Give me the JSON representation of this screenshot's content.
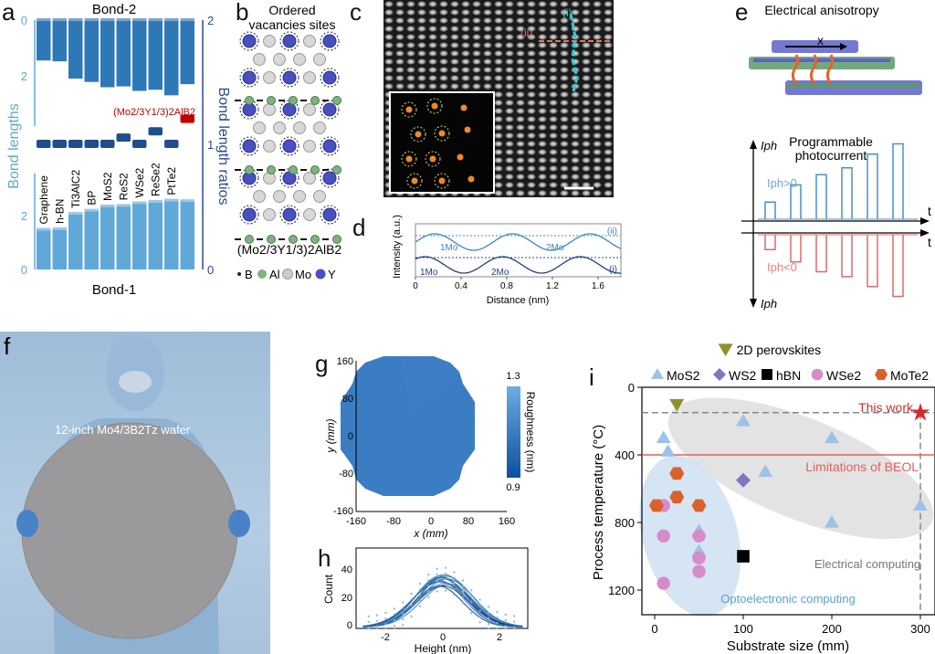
{
  "panel_labels": {
    "a": "a",
    "b": "b",
    "c": "c",
    "d": "d",
    "e": "e",
    "f": "f",
    "g": "g",
    "h": "h",
    "i": "i"
  },
  "panel_a": {
    "top_title": "Bond-2",
    "bottom_title": "Bond-1",
    "left_axis_label": "Bond lengths",
    "right_axis_label": "Bond length ratios",
    "left_top_ticks": [
      "0",
      "2"
    ],
    "left_bottom_ticks": [
      "2",
      "0"
    ],
    "right_ticks": [
      "2",
      "1",
      "0"
    ],
    "highlight_label": "(Mo2/3Y1/3)2AlB2",
    "materials": [
      "Graphene",
      "h-BN",
      "Ti3AlC2",
      "BP",
      "MoS2",
      "ReS2",
      "WSe2",
      "ReSe2",
      "PtTe2",
      "(Mo2/3Y1/3)2AlB2"
    ],
    "bond2": [
      1.45,
      1.48,
      2.1,
      2.22,
      2.41,
      2.38,
      2.54,
      2.5,
      2.7,
      2.3
    ],
    "bond1": [
      1.5,
      1.52,
      2.1,
      2.22,
      2.38,
      2.4,
      2.5,
      2.55,
      2.6,
      2.58
    ],
    "ratio": [
      1.0,
      1.0,
      1.0,
      1.0,
      1.0,
      1.05,
      1.0,
      1.1,
      1.0,
      1.2
    ],
    "colors": {
      "bond2": "#2f78b8",
      "bond1": "#5fa8d8",
      "ratio": "#1f4e8c",
      "highlight": "#c00000",
      "left_axis": "#5fa8d8",
      "right_axis": "#2b4c8c"
    }
  },
  "panel_b": {
    "title_line1": "Ordered",
    "title_line2": "vacancies sites",
    "formula": "(Mo2/3Y1/3)2AlB2",
    "legend": [
      "B",
      "Al",
      "Mo",
      "Y"
    ]
  },
  "panel_c": {
    "marker_i": "(i)",
    "marker_ii": "(ii)"
  },
  "panel_d": {
    "ylabel": "Intensity (a.u.)",
    "xlabel": "Distance (nm)",
    "xticks": [
      "0",
      "0.4",
      "0.8",
      "1.2",
      "1.6"
    ],
    "curve_labels": [
      "(ii)",
      "(i)"
    ],
    "annotations_top": [
      "1Mo",
      "2Mo"
    ],
    "annotations_bottom": [
      "1Mo",
      "2Mo"
    ]
  },
  "panel_e": {
    "title": "Electrical anisotropy",
    "axis_symbol": "x",
    "subtitle_line1": "Programmable",
    "subtitle_line2": "photocurrent",
    "y_label": "Iph",
    "positive_label": "Iph>0",
    "negative_label": "Iph<0",
    "t_label": "t",
    "positive_pulses": [
      0.25,
      0.5,
      0.65,
      0.75,
      0.95,
      1.1
    ],
    "negative_pulses": [
      0.3,
      0.55,
      0.75,
      0.85,
      1.05,
      1.25
    ],
    "colors": {
      "positive": "#4a8fd0",
      "negative": "#e06a6a"
    }
  },
  "panel_f": {
    "caption": "12-inch Mo4/3B2Tz wafer"
  },
  "panel_g": {
    "xlabel": "x (mm)",
    "ylabel": "y (mm)",
    "xticks": [
      "-160",
      "-80",
      "0",
      "80",
      "160"
    ],
    "yticks": [
      "160",
      "80",
      "0",
      "-80",
      "-160"
    ],
    "colorbar_label": "Roughness (nm)",
    "colorbar_max": "1.3",
    "colorbar_min": "0.9"
  },
  "panel_h": {
    "xlabel": "Height (nm)",
    "ylabel": "Count",
    "xticks": [
      "-2",
      "0",
      "2"
    ],
    "yticks": [
      "0",
      "20",
      "40"
    ]
  },
  "chart_data": {
    "type": "scatter",
    "xlabel": "Substrate size (mm)",
    "ylabel": "Process temperature (°C)",
    "xlim": [
      -15,
      310
    ],
    "ylim": [
      1350,
      0
    ],
    "xticks": [
      "0",
      "100",
      "200",
      "300"
    ],
    "yticks": [
      "0",
      "400",
      "800",
      "1200"
    ],
    "legend": [
      "2D perovskites",
      "MoS2",
      "WS2",
      "hBN",
      "WSe2",
      "MoTe2"
    ],
    "series": [
      {
        "name": "2D perovskites",
        "marker": "triangle-down",
        "color": "#8f8f2a",
        "points": [
          [
            25,
            100
          ]
        ]
      },
      {
        "name": "MoS2",
        "marker": "triangle-up",
        "color": "#9cc3e6",
        "points": [
          [
            10,
            300
          ],
          [
            15,
            380
          ],
          [
            100,
            200
          ],
          [
            125,
            500
          ],
          [
            200,
            300
          ],
          [
            200,
            800
          ],
          [
            300,
            700
          ],
          [
            50,
            850
          ],
          [
            50,
            970
          ]
        ]
      },
      {
        "name": "WS2",
        "marker": "diamond",
        "color": "#8473c0",
        "points": [
          [
            100,
            550
          ]
        ]
      },
      {
        "name": "hBN",
        "marker": "square",
        "color": "#000000",
        "points": [
          [
            100,
            1000
          ]
        ]
      },
      {
        "name": "WSe2",
        "marker": "circle",
        "color": "#d58cc8",
        "points": [
          [
            10,
            700
          ],
          [
            10,
            880
          ],
          [
            10,
            1160
          ],
          [
            50,
            880
          ],
          [
            50,
            1010
          ],
          [
            50,
            1090
          ]
        ]
      },
      {
        "name": "MoTe2",
        "marker": "hexagon",
        "color": "#d9622b",
        "points": [
          [
            2,
            700
          ],
          [
            25,
            510
          ],
          [
            25,
            650
          ],
          [
            50,
            700
          ]
        ]
      },
      {
        "name": "This work",
        "marker": "star",
        "color": "#d42a2a",
        "points": [
          [
            300,
            150
          ]
        ]
      }
    ],
    "annotations": {
      "this_work": "This work",
      "beol": "Limitations of BEOL",
      "electrical": "Electrical computing",
      "optoelectronic": "Optoelectronic computing"
    },
    "beol_limit": 400,
    "this_work_temp": 150,
    "this_work_size": 300
  }
}
